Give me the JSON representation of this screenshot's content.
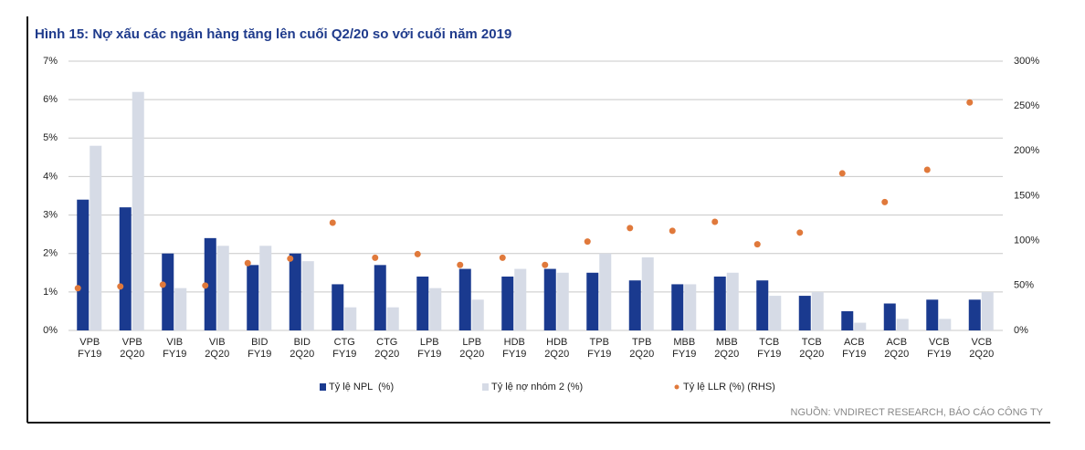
{
  "chart_data": {
    "type": "bar",
    "title": "Hình 15: Nợ xấu các ngân hàng tăng lên cuối Q2/20 so với cuối năm 2019",
    "source": "NGUỒN: VNDIRECT RESEARCH, BÁO CÁO CÔNG TY",
    "categories": [
      "VPB\nFY19",
      "VPB\n2Q20",
      "VIB\nFY19",
      "VIB\n2Q20",
      "BID\nFY19",
      "BID\n2Q20",
      "CTG\nFY19",
      "CTG\n2Q20",
      "LPB\nFY19",
      "LPB\n2Q20",
      "HDB\nFY19",
      "HDB\n2Q20",
      "TPB\nFY19",
      "TPB\n2Q20",
      "MBB\nFY19",
      "MBB\n2Q20",
      "TCB\nFY19",
      "TCB\n2Q20",
      "ACB\nFY19",
      "ACB\n2Q20",
      "VCB\nFY19",
      "VCB\n2Q20"
    ],
    "series": [
      {
        "name": "Tỷ lệ NPL  (%)",
        "color": "#1a3a8f",
        "type": "bar",
        "values": [
          3.4,
          3.2,
          2.0,
          2.4,
          1.7,
          2.0,
          1.2,
          1.7,
          1.4,
          1.6,
          1.4,
          1.6,
          1.5,
          1.3,
          1.2,
          1.4,
          1.3,
          0.9,
          0.5,
          0.7,
          0.8,
          0.8
        ]
      },
      {
        "name": "Tỷ lệ nợ nhóm 2 (%)",
        "color": "#d6dbe6",
        "type": "bar",
        "values": [
          4.8,
          6.2,
          1.1,
          2.2,
          2.2,
          1.8,
          0.6,
          0.6,
          1.1,
          0.8,
          1.6,
          1.5,
          2.0,
          1.9,
          1.2,
          1.5,
          0.9,
          1.0,
          0.2,
          0.3,
          0.3,
          1.0
        ]
      },
      {
        "name": "Tỷ lệ LLR (%) (RHS)",
        "color": "#e0793b",
        "type": "scatter",
        "axis": "y2",
        "values": [
          47,
          49,
          51,
          50,
          75,
          80,
          120,
          81,
          85,
          73,
          81,
          73,
          99,
          114,
          111,
          121,
          96,
          109,
          175,
          143,
          179,
          254
        ]
      }
    ],
    "ylim": [
      0,
      7
    ],
    "yticks": [
      {
        "value": 0,
        "label": "0%"
      },
      {
        "value": 1,
        "label": "1%"
      },
      {
        "value": 2,
        "label": "2%"
      },
      {
        "value": 3,
        "label": "3%"
      },
      {
        "value": 4,
        "label": "4%"
      },
      {
        "value": 5,
        "label": "5%"
      },
      {
        "value": 6,
        "label": "6%"
      },
      {
        "value": 7,
        "label": "7%"
      }
    ],
    "y2lim": [
      0,
      300
    ],
    "y2ticks": [
      {
        "value": 0,
        "label": "0%"
      },
      {
        "value": 50,
        "label": "50%"
      },
      {
        "value": 100,
        "label": "100%"
      },
      {
        "value": 150,
        "label": "150%"
      },
      {
        "value": 200,
        "label": "200%"
      },
      {
        "value": 250,
        "label": "250%"
      },
      {
        "value": 300,
        "label": "300%"
      }
    ],
    "grid": true
  }
}
